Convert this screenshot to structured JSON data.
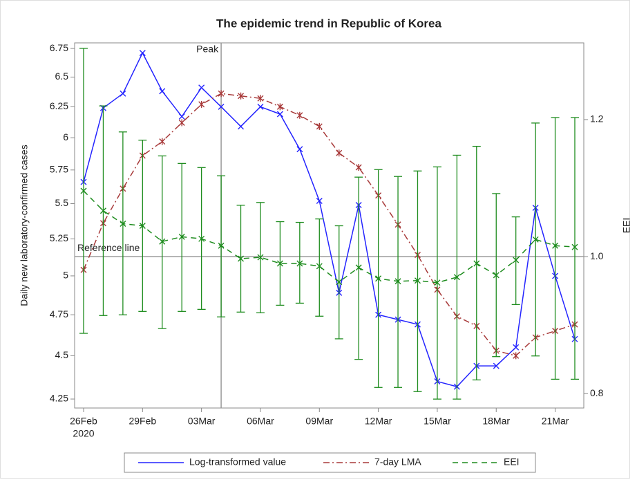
{
  "chart_data": {
    "type": "line",
    "title": "The epidemic trend in Republic of Korea",
    "categories": [
      "26Feb",
      null,
      null,
      "29Feb",
      null,
      null,
      "03Mar",
      null,
      null,
      "06Mar",
      null,
      null,
      "09Mar",
      null,
      null,
      "12Mar",
      null,
      null,
      "15Mar",
      null,
      null,
      "18Mar",
      null,
      null,
      "21Mar",
      null
    ],
    "x_sublabel": "2020",
    "y_label": "Daily new laboratory-confirmed cases",
    "y2_label": "EEI",
    "log_y": true,
    "ylim": [
      4.2,
      6.8
    ],
    "yticks": [
      4.25,
      4.5,
      4.75,
      5,
      5.25,
      5.5,
      5.75,
      6,
      6.25,
      6.5,
      6.75
    ],
    "y2lim": [
      0.779,
      1.312
    ],
    "y2ticks": [
      0.8,
      {
        "value": 1,
        "label": "1.0"
      },
      1.2
    ],
    "grid": false,
    "legend": "bottom",
    "series": [
      {
        "name": "Log-transformed value",
        "color": "#2424ff",
        "dash": "solid",
        "marker": "x",
        "values": [
          5.66,
          6.24,
          6.36,
          6.71,
          6.38,
          6.17,
          6.41,
          6.25,
          6.09,
          6.25,
          6.19,
          5.91,
          5.52,
          4.89,
          5.49,
          4.75,
          4.72,
          4.69,
          4.35,
          4.32,
          4.44,
          4.44,
          4.55,
          5.47,
          5.0,
          4.6
        ]
      },
      {
        "name": "7-day LMA",
        "color": "#a83a3a",
        "dash": "dashdot",
        "marker": "asterisk",
        "values": [
          5.04,
          5.36,
          5.61,
          5.86,
          5.97,
          6.12,
          6.27,
          6.36,
          6.34,
          6.32,
          6.25,
          6.18,
          6.09,
          5.88,
          5.77,
          5.56,
          5.35,
          5.14,
          4.91,
          4.74,
          4.68,
          4.53,
          4.5,
          4.61,
          4.65,
          4.69
        ]
      },
      {
        "name": "EEI",
        "color": "#1e8c1e",
        "dash": "dashed",
        "marker": "x",
        "axis": "y2",
        "values": [
          1.096,
          1.067,
          1.048,
          1.045,
          1.022,
          1.029,
          1.026,
          1.016,
          0.997,
          0.999,
          0.99,
          0.99,
          0.986,
          0.963,
          0.984,
          0.968,
          0.964,
          0.965,
          0.962,
          0.97,
          0.99,
          0.973,
          0.995,
          1.025,
          1.016,
          1.014
        ],
        "upper": [
          1.304,
          1.22,
          1.182,
          1.17,
          1.147,
          1.136,
          1.13,
          1.118,
          1.075,
          1.079,
          1.051,
          1.05,
          1.055,
          1.045,
          1.116,
          1.127,
          1.117,
          1.125,
          1.131,
          1.148,
          1.161,
          1.092,
          1.058,
          1.195,
          1.203,
          1.203
        ],
        "lower": [
          0.888,
          0.914,
          0.915,
          0.92,
          0.895,
          0.92,
          0.923,
          0.912,
          0.919,
          0.918,
          0.929,
          0.932,
          0.913,
          0.88,
          0.85,
          0.809,
          0.809,
          0.803,
          0.792,
          0.792,
          0.82,
          0.854,
          0.93,
          0.855,
          0.821,
          0.821
        ]
      }
    ],
    "peak": {
      "label": "Peak",
      "index": 7
    },
    "reference_line": {
      "label": "Reference line",
      "value": 1,
      "axis": "y2"
    }
  }
}
